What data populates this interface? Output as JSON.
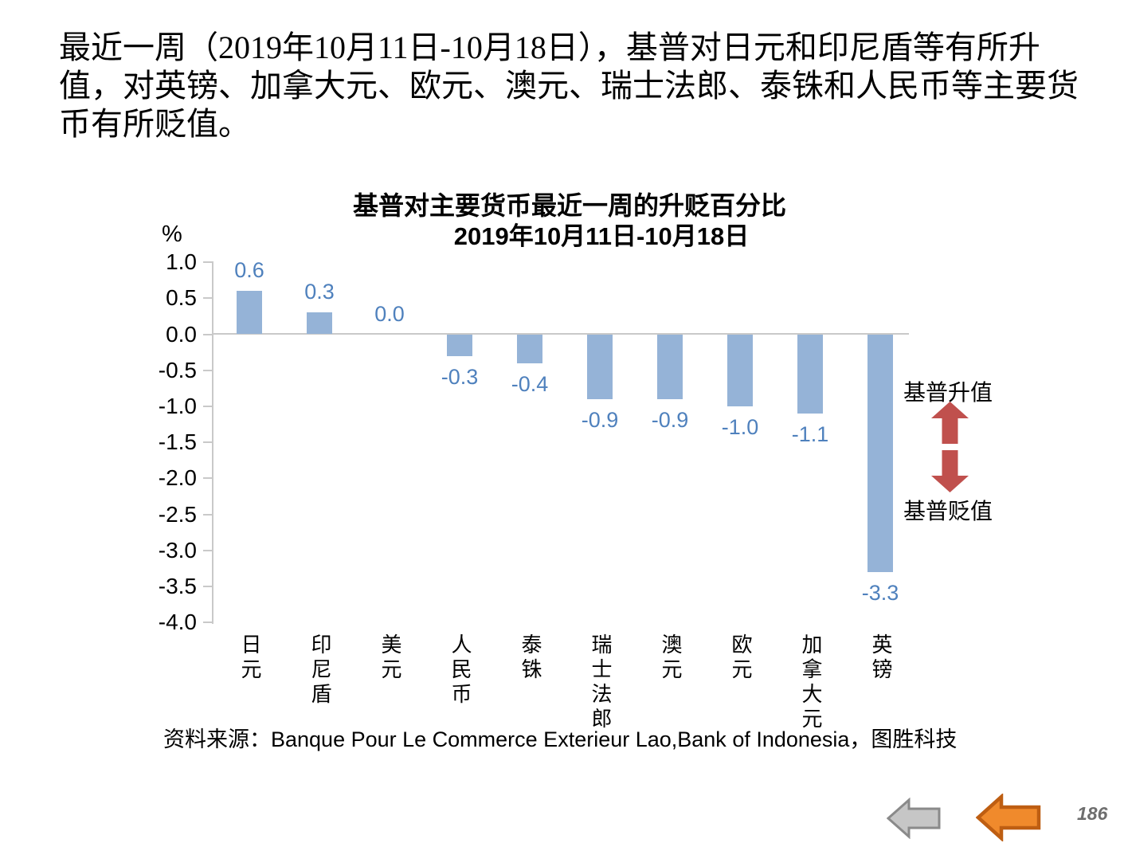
{
  "slide": {
    "paragraph": {
      "line1": "最近一周（2019年10月11日-10月18日），基普对日元和印尼盾等有所升",
      "line2": "值，对英镑、加拿大元、欧元、澳元、瑞士法郎、泰铢和人民币等主要货",
      "line3": "币有所贬值。"
    },
    "page_number": "186"
  },
  "chart_data": {
    "type": "bar",
    "title": "基普对主要货币最近一周的升贬百分比",
    "subtitle": "2019年10月11日-10月18日",
    "unit_label": "%",
    "categories": [
      "日元",
      "印尼盾",
      "美元",
      "人民币",
      "泰铢",
      "瑞士法郎",
      "澳元",
      "欧元",
      "加拿大元",
      "英镑"
    ],
    "values": [
      0.6,
      0.3,
      0.0,
      -0.3,
      -0.4,
      -0.9,
      -0.9,
      -1.0,
      -1.1,
      -3.3
    ],
    "value_labels": [
      "0.6",
      "0.3",
      "0.0",
      "-0.3",
      "-0.4",
      "-0.9",
      "-0.9",
      "-1.0",
      "-1.1",
      "-3.3"
    ],
    "ylim": [
      -4.0,
      1.0
    ],
    "ytick_step": 0.5,
    "yticks": [
      "1.0",
      "0.5",
      "0.0",
      "-0.5",
      "-1.0",
      "-1.5",
      "-2.0",
      "-2.5",
      "-3.0",
      "-3.5",
      "-4.0"
    ],
    "grid": false,
    "legend": "none",
    "bar_color": "#95B3D7",
    "value_label_color": "#4F81BD",
    "axis_color": "#C9C9C9",
    "annotations": {
      "up_label": "基普升值",
      "down_label": "基普贬值",
      "up_icon": "block-arrow-up",
      "down_icon": "block-arrow-down",
      "arrow_color": "#C0504D"
    },
    "source": "资料来源：Banque Pour Le Commerce Exterieur Lao,Bank of Indonesia，图胜科技"
  },
  "nav": {
    "back_icon": "left-block-arrow",
    "back_fill": "#C6C6C6",
    "back_stroke": "#8A8A8A",
    "forward_icon": "left-block-arrow",
    "forward_fill": "#F08A2C",
    "forward_stroke": "#BE5E12"
  }
}
